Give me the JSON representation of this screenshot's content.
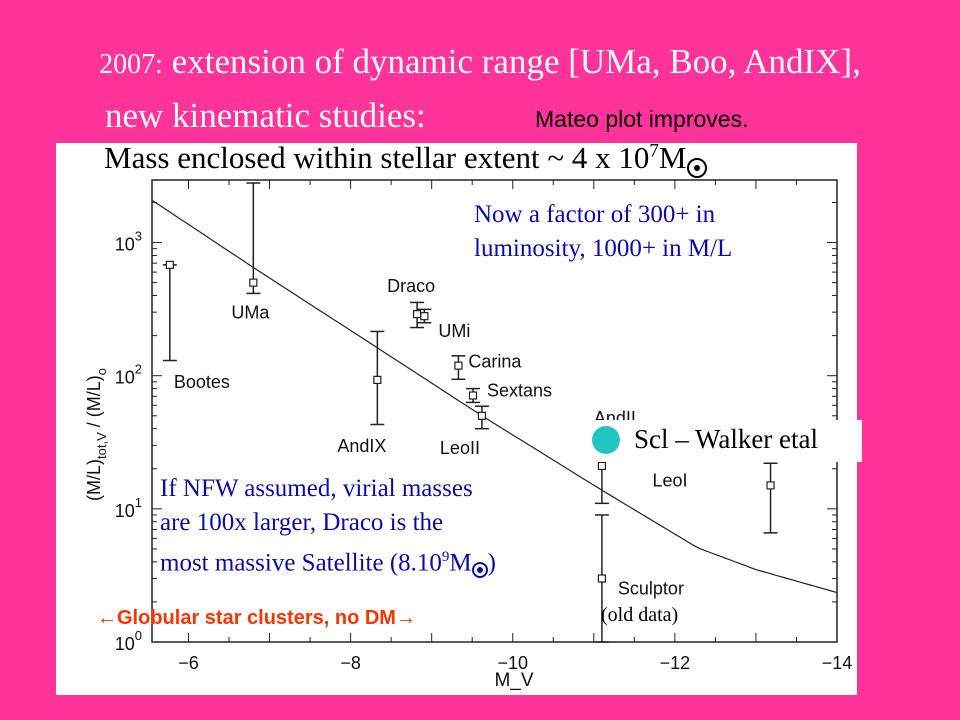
{
  "slide": {
    "title_year": "2007:",
    "title_rest": "extension of dynamic range [UMa, Boo, AndIX],",
    "title_line2": "new kinematic studies:",
    "title_note": "Mateo plot improves.",
    "subtitle_pre": "Mass enclosed within stellar extent ~ 4 x 10",
    "subtitle_exp": "7",
    "subtitle_post": "M",
    "note_top": [
      "Now a factor of 300+ in",
      "luminosity, 1000+ in M/L"
    ],
    "note_nfw": [
      "If NFW assumed, virial masses",
      "are 100x larger, Draco is the"
    ],
    "note_nfw_line3_pre": "most massive Satellite (8.10",
    "note_nfw_line3_exp": "9",
    "note_nfw_line3_post": "M",
    "note_nfw_close": ")",
    "globular_note": "Globular star clusters, no DM",
    "old_data": "(old data)",
    "scl_label": "Scl – Walker etal",
    "colors": {
      "background": "#ff3399",
      "annotation_blue": "#0a0aaa",
      "globular_red": "#ff3300",
      "scl_marker": "#22c4c4"
    }
  },
  "chart_data": {
    "type": "scatter",
    "xlabel": "M_V",
    "ylabel": "(M/L)_tot,V / (M/L)_o",
    "xlim": [
      -5.55,
      -14
    ],
    "ylim": [
      1,
      2950
    ],
    "yscale": "log",
    "xticks": [
      "-6",
      "-8",
      "-10",
      "-12",
      "-14"
    ],
    "yticks": [
      "10^0",
      "10^1",
      "10^2",
      "10^3"
    ],
    "points": [
      {
        "name": "Bootes",
        "x": -5.77,
        "y": 680,
        "lo": 130,
        "hi": 680
      },
      {
        "name": "UMa",
        "x": -6.8,
        "y": 500,
        "lo": 415,
        "hi": 2800
      },
      {
        "name": "Draco",
        "x": -8.82,
        "y": 290,
        "lo": 230,
        "hi": 355
      },
      {
        "name": "UMi",
        "x": -8.91,
        "y": 280,
        "lo": 250,
        "hi": 315
      },
      {
        "name": "Carina",
        "x": -9.33,
        "y": 119,
        "lo": 94,
        "hi": 141
      },
      {
        "name": "Sextans",
        "x": -9.51,
        "y": 71,
        "lo": 63,
        "hi": 80
      },
      {
        "name": "LeoII",
        "x": -9.62,
        "y": 50,
        "lo": 40,
        "hi": 59
      },
      {
        "name": "AndIX",
        "x": -8.33,
        "y": 93,
        "lo": 43,
        "hi": 215
      },
      {
        "name": "AndII",
        "x": -11.1,
        "y": 21,
        "lo": 11,
        "hi": 35
      },
      {
        "name": "Sculptor",
        "x": -11.1,
        "y": 3,
        "lo": 1,
        "hi": 9
      },
      {
        "name": "LeoI",
        "x": -13.18,
        "y": 15,
        "lo": 6.6,
        "hi": 22
      }
    ],
    "highlight_point": {
      "name": "Scl – Walker etal",
      "x": -11.1,
      "y": 35
    },
    "curve": {
      "x": [
        -5.55,
        -6.8,
        -8.33,
        -9.62,
        -11.1,
        -12.28,
        -13.0,
        -14.0
      ],
      "y": [
        2080,
        650,
        162,
        50,
        13.8,
        5.1,
        3.5,
        2.35
      ]
    }
  }
}
